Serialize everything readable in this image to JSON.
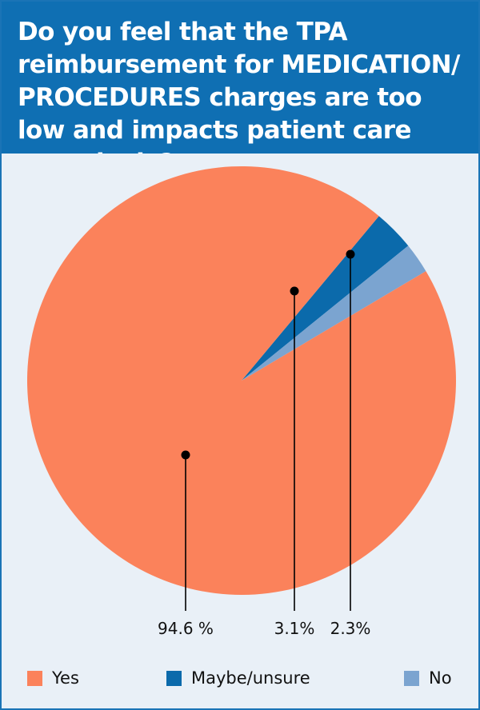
{
  "chart_data": {
    "type": "pie",
    "title": "Do you feel that the TPA reimbursement for MEDICATION/ PROCEDURES charges are too low and impacts patient care negatively?",
    "slices": [
      {
        "name": "Yes",
        "value": 94.6,
        "label": "94.6 %",
        "color": "#fb825b"
      },
      {
        "name": "Maybe/unsure",
        "value": 3.1,
        "label": "3.1%",
        "color": "#0b6aab"
      },
      {
        "name": "No",
        "value": 2.3,
        "label": "2.3%",
        "color": "#7ba4d0"
      }
    ],
    "legend_position": "bottom"
  },
  "colors": {
    "header": "#0f6fb3",
    "border": "#1a74b6",
    "plot_background": "#e9f0f7"
  }
}
